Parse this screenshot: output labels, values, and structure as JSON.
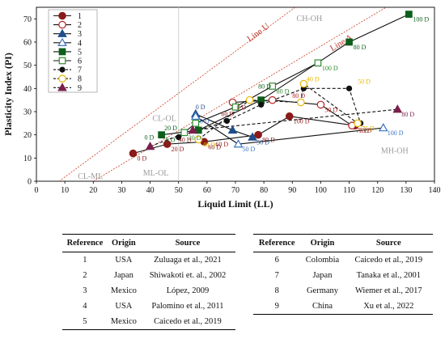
{
  "chart_data": {
    "type": "scatter",
    "xlabel": "Liquid Limit (LL)",
    "ylabel": "Plasticity Index (PI)",
    "xlim": [
      0,
      140
    ],
    "ylim": [
      0,
      75
    ],
    "xticks": [
      0,
      10,
      20,
      30,
      40,
      50,
      60,
      70,
      80,
      90,
      100,
      110,
      120,
      130,
      140
    ],
    "yticks": [
      0,
      10,
      20,
      30,
      40,
      50,
      60,
      70
    ],
    "legend_position": "top-left",
    "zone_labels": [
      {
        "text": "CH-OH",
        "x": 96,
        "y": 69
      },
      {
        "text": "MH-OH",
        "x": 126,
        "y": 12
      },
      {
        "text": "CL-OL",
        "x": 45,
        "y": 26
      },
      {
        "text": "ML-OL",
        "x": 42,
        "y": 2.5
      },
      {
        "text": "CL-ML",
        "x": 19,
        "y": 1
      }
    ],
    "reference_lines": [
      {
        "name": "Line U",
        "points": [
          [
            8,
            0
          ],
          [
            91,
            75
          ]
        ],
        "label_pos": [
          75,
          60
        ]
      },
      {
        "name": "Line A",
        "points": [
          [
            20,
            0
          ],
          [
            123,
            75
          ]
        ],
        "label_pos": [
          104,
          56
        ]
      }
    ],
    "vertical_refline_x": 50,
    "series": [
      {
        "name": "1",
        "color": "#8B1A1A",
        "marker": "circle-filled",
        "line": "solid",
        "x": [
          34,
          46,
          59,
          78,
          89,
          112
        ],
        "y": [
          12,
          16,
          17,
          20,
          28,
          24
        ],
        "labels": [
          "0 D",
          "20 D",
          "60 D",
          "80 D",
          "100 D",
          "75 D"
        ]
      },
      {
        "name": "2",
        "color": "#B22222",
        "marker": "circle-open",
        "line": "solid",
        "x": [
          69,
          83,
          100,
          111
        ],
        "y": [
          34,
          35,
          33,
          24
        ],
        "labels": [
          "0 D",
          "",
          "50 D",
          "75 D"
        ]
      },
      {
        "name": "3",
        "color": "#1F4E8C",
        "marker": "triangle-filled",
        "line": "solid",
        "x": [
          56,
          69,
          76
        ],
        "y": [
          29,
          22,
          19
        ],
        "labels": [
          "",
          "",
          "50 D"
        ]
      },
      {
        "name": "4",
        "color": "#3A74C0",
        "marker": "triangle-open",
        "line": "solid",
        "x": [
          56,
          71,
          122
        ],
        "y": [
          28,
          16,
          23
        ],
        "labels": [
          "0 D",
          "50 D",
          "100 D"
        ]
      },
      {
        "name": "5",
        "color": "#0D5E1A",
        "marker": "square-filled",
        "line": "solid",
        "x": [
          44,
          57,
          79,
          110,
          131
        ],
        "y": [
          20,
          22,
          35,
          60,
          72
        ],
        "labels": [
          "0 D",
          "",
          "",
          "80 D",
          "100 D"
        ]
      },
      {
        "name": "6",
        "color": "#2E8B2E",
        "marker": "square-open",
        "line": "solid",
        "x": [
          52,
          56,
          70,
          83,
          99
        ],
        "y": [
          21,
          25,
          32,
          41,
          51
        ],
        "labels": [
          "20 D",
          "",
          "",
          "80 D",
          "100 D"
        ]
      },
      {
        "name": "7",
        "color": "#111111",
        "marker": "circle-filled-small",
        "line": "dashed",
        "x": [
          50,
          67,
          79,
          94,
          110,
          114
        ],
        "y": [
          19,
          26,
          33,
          40,
          40,
          25
        ],
        "labels": [
          "",
          "",
          "",
          "",
          "",
          ""
        ]
      },
      {
        "name": "8",
        "color": "#E6B800",
        "marker": "circle-open",
        "line": "dashed",
        "x": [
          57,
          75,
          93,
          94,
          113
        ],
        "y": [
          18,
          35,
          34,
          42,
          25
        ],
        "labels": [
          "40 D",
          "",
          "",
          "",
          "75 D"
        ]
      },
      {
        "name": "9",
        "color": "#7A1F4B",
        "marker": "triangle-filled",
        "line": "dashed",
        "x": [
          40,
          55,
          127
        ],
        "y": [
          15,
          22,
          31
        ],
        "labels": [
          "",
          "",
          "80 D"
        ]
      }
    ],
    "extra_labels": [
      {
        "text": "0 D",
        "x": 56,
        "y": 31,
        "color": "#1F4E8C"
      },
      {
        "text": "0 D",
        "x": 38,
        "y": 18,
        "color": "#0D5E1A"
      },
      {
        "text": "20 D",
        "x": 45,
        "y": 22,
        "color": "#0D5E1A"
      },
      {
        "text": "40 D",
        "x": 50,
        "y": 17,
        "color": "#8B1A1A"
      },
      {
        "text": "60 D",
        "x": 65,
        "y": 28,
        "color": "#8B1A1A"
      },
      {
        "text": "80 D",
        "x": 78,
        "y": 40,
        "color": "#0D5E1A"
      },
      {
        "text": "40 D",
        "x": 95,
        "y": 43,
        "color": "#E6B800"
      },
      {
        "text": "50 D",
        "x": 113,
        "y": 42,
        "color": "#E6B800"
      },
      {
        "text": "80 D",
        "x": 90,
        "y": 36,
        "color": "#B22222"
      },
      {
        "text": "60 D",
        "x": 63,
        "y": 15,
        "color": "#8B1A1A"
      }
    ]
  },
  "table": {
    "headers": [
      "Reference",
      "Origin",
      "Source"
    ],
    "left_rows": [
      [
        "1",
        "USA",
        "Zuluaga et al., 2021"
      ],
      [
        "2",
        "Japan",
        "Shiwakoti et. al., 2002"
      ],
      [
        "3",
        "Mexico",
        "López, 2009"
      ],
      [
        "4",
        "USA",
        "Palomino et al., 2011"
      ],
      [
        "5",
        "Mexico",
        "Caicedo et al., 2019"
      ]
    ],
    "right_rows": [
      [
        "6",
        "Colombia",
        "Caicedo et al., 2019"
      ],
      [
        "7",
        "Japan",
        "Tanaka et al., 2001"
      ],
      [
        "8",
        "Germany",
        "Wiemer et al., 2017"
      ],
      [
        "9",
        "China",
        "Xu et al., 2022"
      ]
    ]
  }
}
